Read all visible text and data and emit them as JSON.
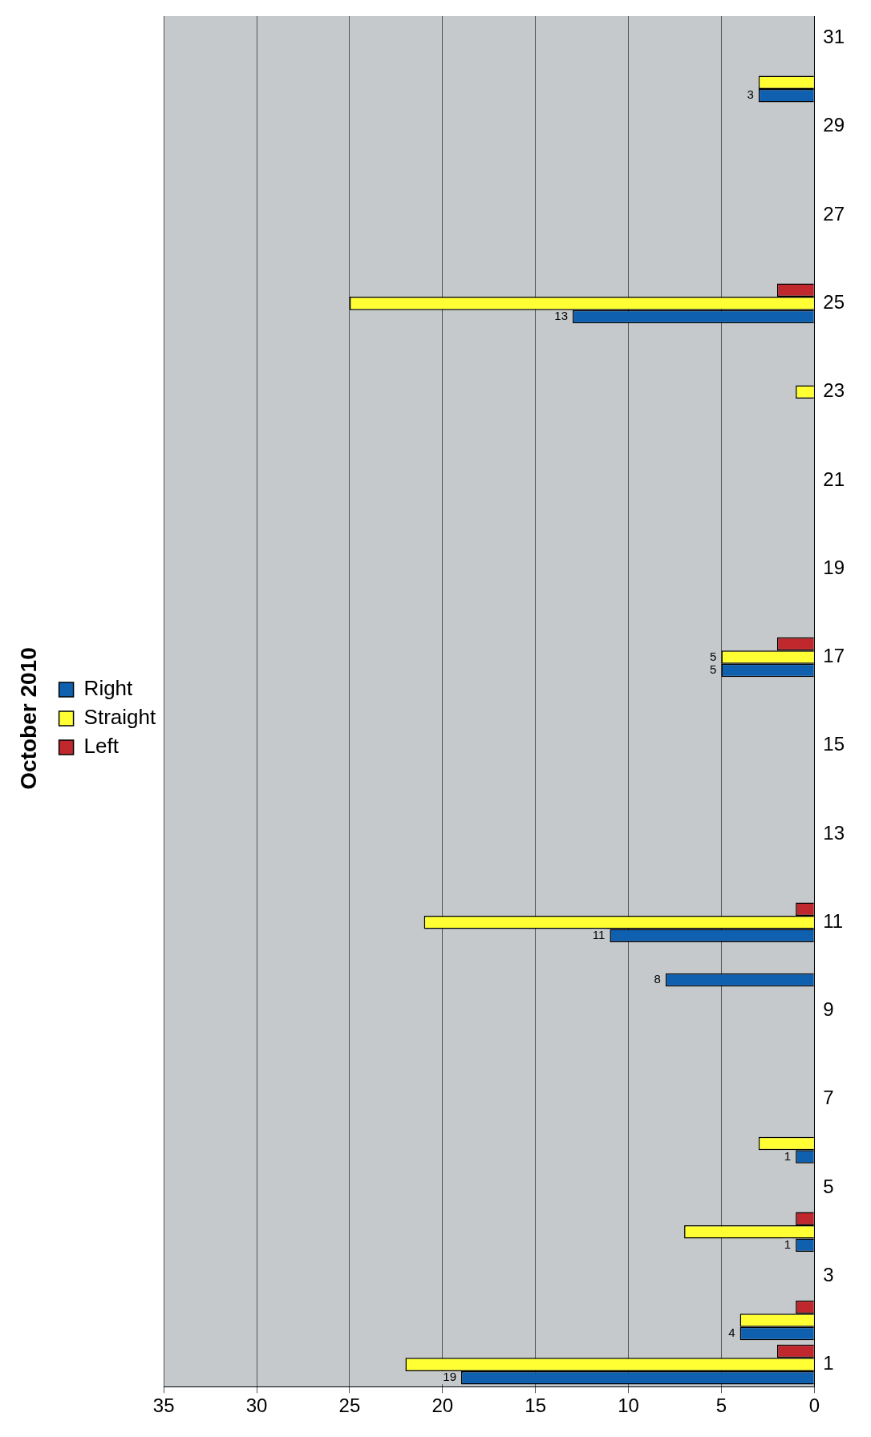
{
  "chart_data": {
    "type": "bar",
    "title": "October 2010",
    "orientation": "horizontal",
    "categories": [
      "31",
      null,
      "29",
      null,
      "27",
      null,
      "25",
      null,
      "23",
      null,
      "21",
      null,
      "19",
      null,
      "17",
      null,
      "15",
      null,
      "13",
      null,
      "11",
      null,
      "9",
      null,
      "7",
      null,
      "5",
      null,
      "3",
      null,
      "1"
    ],
    "series": [
      {
        "name": "Left",
        "color": "#c0282d",
        "values": [
          null,
          null,
          null,
          null,
          null,
          null,
          2,
          null,
          null,
          null,
          null,
          null,
          null,
          null,
          2,
          null,
          null,
          null,
          null,
          null,
          1,
          null,
          null,
          null,
          null,
          null,
          null,
          1,
          null,
          1,
          2
        ]
      },
      {
        "name": "Straight",
        "color": "#ffff33",
        "values": [
          null,
          3,
          null,
          null,
          null,
          null,
          25,
          null,
          1,
          null,
          null,
          null,
          null,
          null,
          5,
          null,
          null,
          null,
          null,
          null,
          21,
          null,
          null,
          null,
          null,
          3,
          null,
          7,
          null,
          4,
          22
        ],
        "value_labels": [
          null,
          null,
          null,
          null,
          null,
          null,
          null,
          null,
          null,
          null,
          null,
          null,
          null,
          null,
          "5",
          null,
          null,
          null,
          null,
          null,
          null,
          null,
          null,
          null,
          null,
          null,
          null,
          null,
          null,
          null,
          null
        ]
      },
      {
        "name": "Right",
        "color": "#1060b0",
        "values": [
          null,
          3,
          null,
          null,
          null,
          null,
          13,
          null,
          null,
          null,
          null,
          null,
          null,
          null,
          5,
          null,
          null,
          null,
          null,
          null,
          11,
          8,
          null,
          null,
          null,
          1,
          null,
          1,
          null,
          4,
          19
        ],
        "value_labels": [
          null,
          "3",
          null,
          null,
          null,
          null,
          "13",
          null,
          null,
          null,
          null,
          null,
          null,
          null,
          "5",
          null,
          null,
          null,
          null,
          null,
          "11",
          "8",
          null,
          null,
          null,
          "1",
          null,
          "1",
          null,
          "4",
          "19"
        ]
      }
    ],
    "xlim": [
      35,
      0
    ],
    "xticks": [
      0,
      5,
      10,
      15,
      20,
      25,
      30,
      35
    ],
    "grid": "x",
    "legend": "left"
  }
}
